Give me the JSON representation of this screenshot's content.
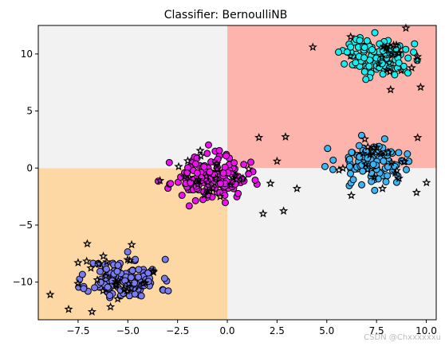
{
  "chart_data": {
    "type": "scatter",
    "title": "Classifier: BernoulliNB",
    "xlabel": "",
    "ylabel": "",
    "xlim": [
      -9.5,
      10.5
    ],
    "ylim": [
      -13.3,
      12.5
    ],
    "xticks": [
      -7.5,
      -5.0,
      -2.5,
      0.0,
      2.5,
      5.0,
      7.5,
      10.0
    ],
    "xtick_labels": [
      "−7.5",
      "−5.0",
      "−2.5",
      "0.0",
      "2.5",
      "5.0",
      "7.5",
      "10.0"
    ],
    "yticks": [
      -10,
      -5,
      0,
      5,
      10
    ],
    "ytick_labels": [
      "−10",
      "−5",
      "0",
      "5",
      "10"
    ],
    "grid": false,
    "regions": [
      {
        "x": [
          -9.5,
          0
        ],
        "y": [
          -13.3,
          0
        ],
        "color": "#fed8a4"
      },
      {
        "x": [
          0,
          10.5
        ],
        "y": [
          0,
          12.5
        ],
        "color": "#fdb4ad"
      },
      {
        "x": [
          -9.5,
          0
        ],
        "y": [
          0,
          12.5
        ],
        "color": "#f2f2f2"
      },
      {
        "x": [
          0,
          10.5
        ],
        "y": [
          -13.3,
          0
        ],
        "color": "#f2f2f2"
      }
    ],
    "clusters": [
      {
        "cx": -5.2,
        "cy": -9.8,
        "spread": 0.9,
        "count": 130,
        "color": "#7b7bf0",
        "seed": 11
      },
      {
        "cx": -0.9,
        "cy": -0.9,
        "spread": 0.95,
        "count": 150,
        "color": "#ee10ee",
        "seed": 23
      },
      {
        "cx": 7.6,
        "cy": 9.8,
        "spread": 0.85,
        "count": 110,
        "color": "#10f0f0",
        "seed": 37
      },
      {
        "cx": 7.3,
        "cy": 0.6,
        "spread": 0.9,
        "count": 120,
        "color": "#3db5f5",
        "seed": 53
      }
    ],
    "test_clusters": [
      {
        "cx": -5.2,
        "cy": -9.7,
        "spread": 1.3,
        "count": 28,
        "seed": 71
      },
      {
        "cx": -0.5,
        "cy": -0.8,
        "spread": 1.4,
        "count": 30,
        "seed": 83
      },
      {
        "cx": 7.7,
        "cy": 9.6,
        "spread": 1.3,
        "count": 24,
        "seed": 97
      },
      {
        "cx": 7.6,
        "cy": 0.2,
        "spread": 1.2,
        "count": 24,
        "seed": 101
      }
    ],
    "test_outliers": [
      {
        "x": -8.9,
        "y": -11.1
      },
      {
        "x": -6.8,
        "y": -12.6
      },
      {
        "x": -7.5,
        "y": -8.3
      },
      {
        "x": 4.3,
        "y": 10.6
      },
      {
        "x": 3.5,
        "y": -1.8
      },
      {
        "x": 1.8,
        "y": -4.0
      },
      {
        "x": 2.5,
        "y": 0.6
      },
      {
        "x": 7.8,
        "y": -1.8
      },
      {
        "x": 6.2,
        "y": 11.5
      }
    ],
    "marker_edge_color": "#000000",
    "test_marker": "star"
  },
  "watermark": "CSDN @Chxxxxxxu"
}
